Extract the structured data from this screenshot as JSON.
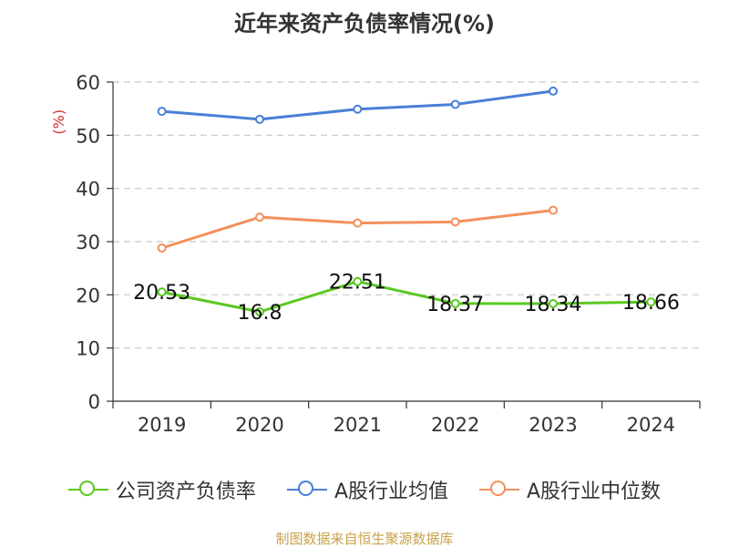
{
  "colors": {
    "company": "#5ac820",
    "industry_avg": "#4a7fd6",
    "industry_median": "#f4905c",
    "unit_label": "#d0302a",
    "grid": "#c8c8c8",
    "axis": "#333333",
    "source": "#c9a14a"
  },
  "source_note": "制图数据来自恒生聚源数据库",
  "chart_data": {
    "type": "line",
    "title": "近年来资产负债率情况(%)",
    "ylabel": "(%)",
    "xlabel": "",
    "categories": [
      "2019",
      "2020",
      "2021",
      "2022",
      "2023",
      "2024"
    ],
    "ylim": [
      0,
      60
    ],
    "yticks": [
      0,
      10,
      20,
      30,
      40,
      50,
      60
    ],
    "grid": true,
    "legend_position": "bottom",
    "series": [
      {
        "name": "公司资产负债率",
        "color_key": "company",
        "values": [
          20.53,
          16.8,
          22.51,
          18.37,
          18.34,
          18.66
        ],
        "labels": [
          "20.53",
          "16.8",
          "22.51",
          "18.37",
          "18.34",
          "18.66"
        ]
      },
      {
        "name": "A股行业均值",
        "color_key": "industry_avg",
        "values": [
          54.5,
          53.0,
          54.9,
          55.8,
          58.3,
          null
        ]
      },
      {
        "name": "A股行业中位数",
        "color_key": "industry_median",
        "values": [
          28.8,
          34.6,
          33.5,
          33.7,
          35.9,
          null
        ]
      }
    ]
  }
}
